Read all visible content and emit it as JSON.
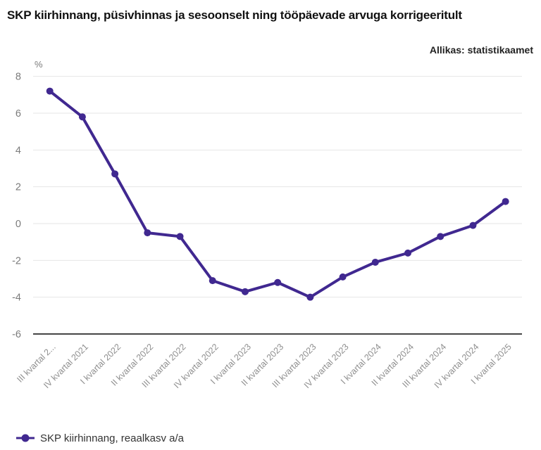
{
  "header": {
    "title": "SKP kiirhinnang, püsivhinnas ja sesoonselt ning tööpäevade arvuga korrigeeritult",
    "source": "Allikas: statistikaamet"
  },
  "legend": {
    "label": "SKP kiirhinnang, reaalkasv a/a"
  },
  "chart_data": {
    "type": "line",
    "title": "SKP kiirhinnang, püsivhinnas ja sesoonselt ning tööpäevade arvuga korrigeeritult",
    "source": "Allikas: statistikaamet",
    "ylabel": "%",
    "xlabel": "",
    "grid": true,
    "legend_position": "bottom-left",
    "categories": [
      "III kvartal 2...",
      "IV kvartal 2021",
      "I kvartal 2022",
      "II kvartal 2022",
      "III kvartal 2022",
      "IV kvartal 2022",
      "I kvartal 2023",
      "II kvartal 2023",
      "III kvartal 2023",
      "IV kvartal 2023",
      "I kvartal 2024",
      "II kvartal 2024",
      "III kvartal 2024",
      "IV kvartal 2024",
      "I kvartal 2025"
    ],
    "series": [
      {
        "name": "SKP kiirhinnang, reaalkasv a/a",
        "values": [
          7.2,
          5.8,
          2.7,
          -0.5,
          -0.7,
          -3.1,
          -3.7,
          -3.2,
          -4.0,
          -2.9,
          -2.1,
          -1.6,
          -0.7,
          -0.1,
          1.2
        ]
      }
    ],
    "yticks": [
      8,
      6,
      4,
      2,
      0,
      -2,
      -4,
      -6
    ],
    "ylim": [
      -6,
      8
    ],
    "colors": {
      "series": "#402890",
      "grid": "#e6e6e6",
      "axis": "#454545",
      "tick_label": "#7b7b7b",
      "category_label": "#8f8f8f"
    }
  }
}
